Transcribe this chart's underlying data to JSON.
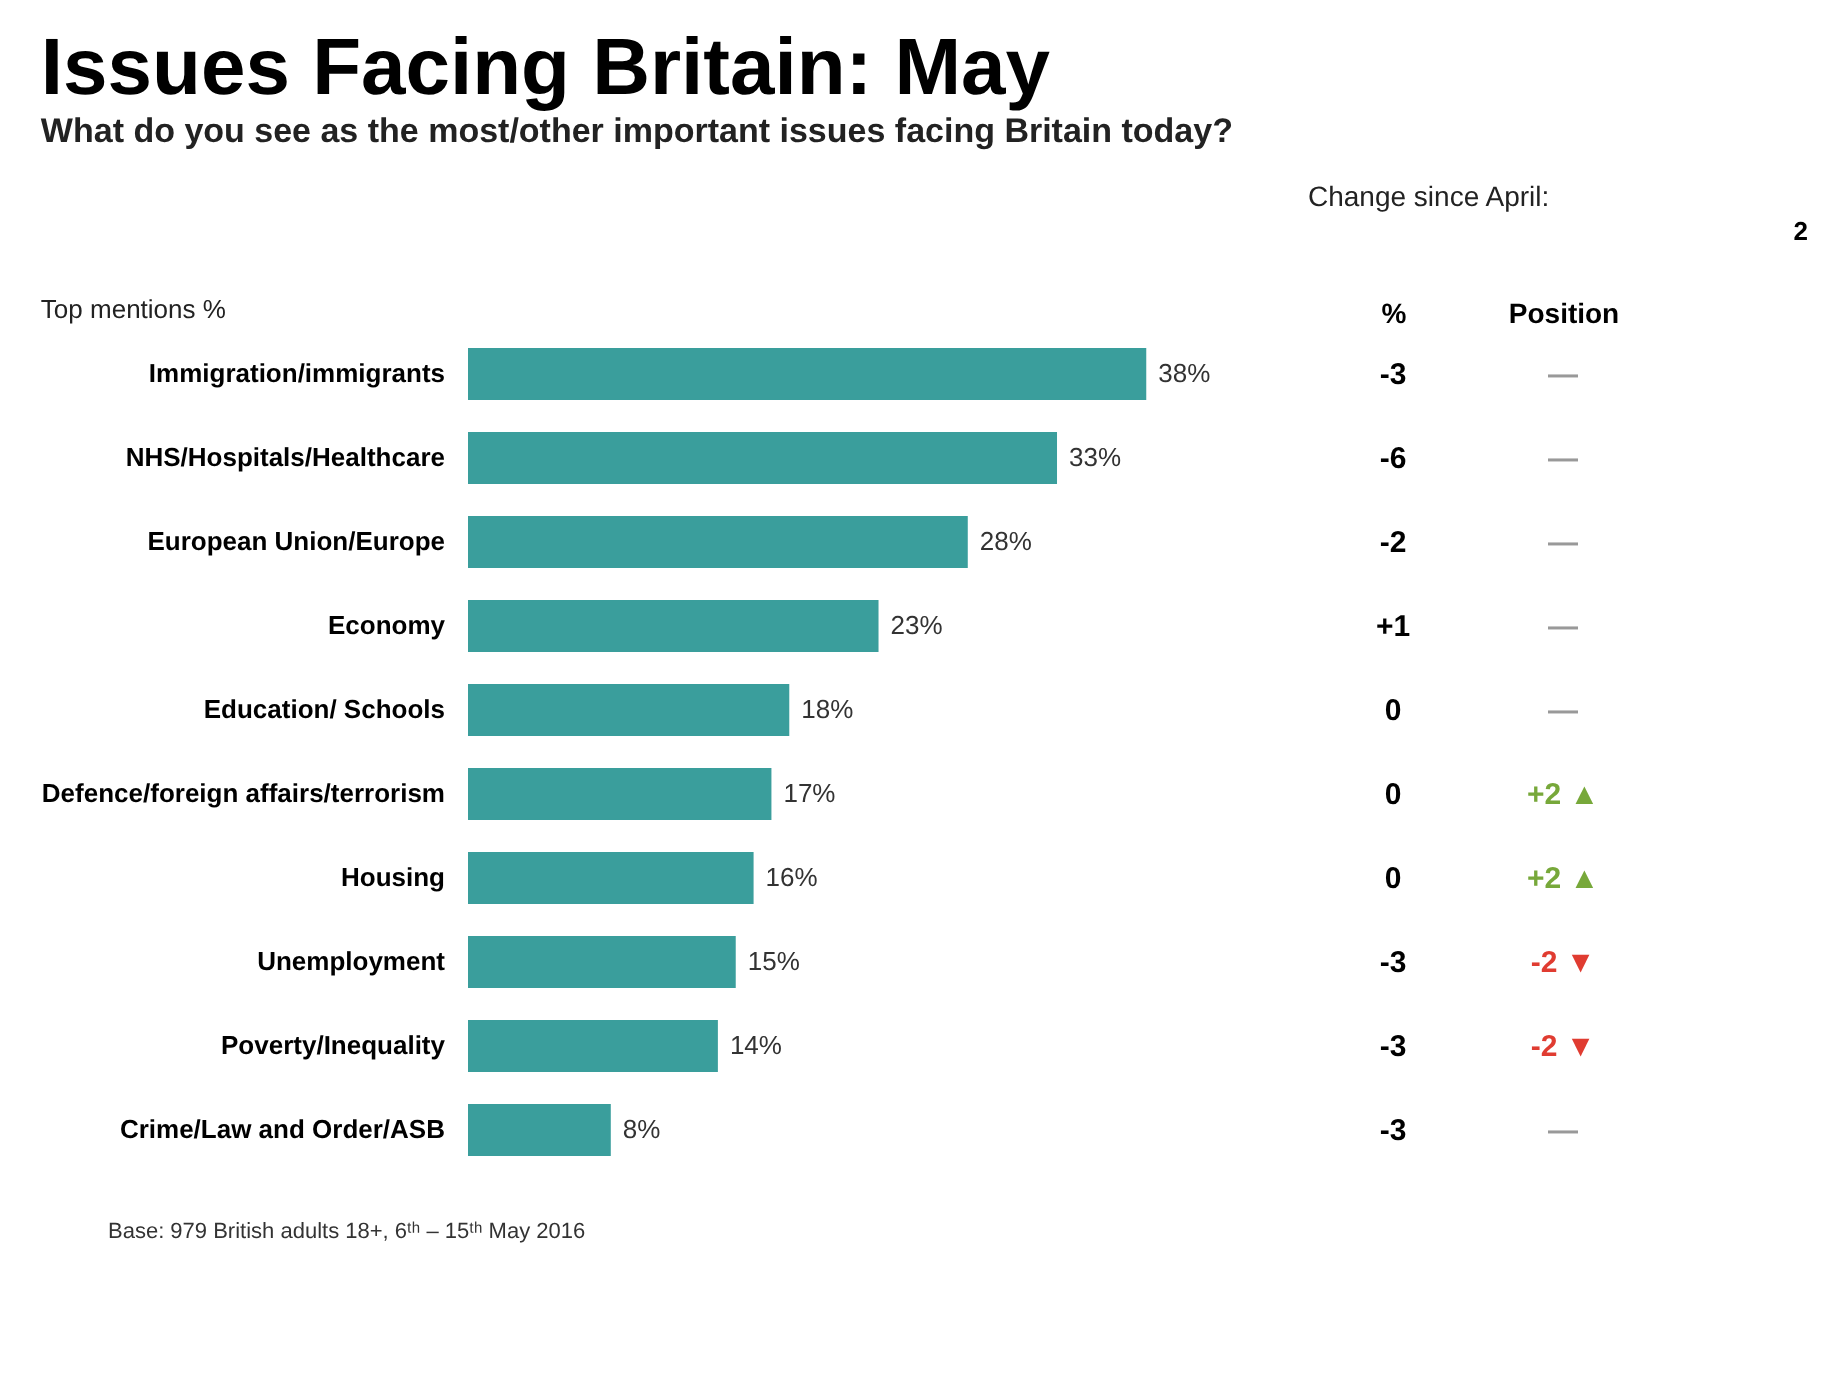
{
  "chart_data": [
    {
      "type": "bar",
      "orientation": "horizontal",
      "title": "Issues Facing Britain: May",
      "subtitle": "What do you see as the most/other important issues facing Britain today?",
      "categories": [
        "Immigration/immigrants",
        "NHS/Hospitals/Healthcare",
        "European Union/Europe",
        "Economy",
        "Education/ Schools",
        "Defence/foreign affairs/terrorism",
        "Housing",
        "Unemployment",
        "Poverty/Inequality",
        "Crime/Law and Order/ASB"
      ],
      "values": [
        38,
        33,
        28,
        23,
        18,
        17,
        16,
        15,
        14,
        8
      ],
      "value_labels": [
        "38%",
        "33%",
        "28%",
        "23%",
        "18%",
        "17%",
        "16%",
        "15%",
        "14%",
        "8%"
      ],
      "color": "#3a9e9c",
      "grid": false,
      "annotations": [
        "Top mentions %",
        "Base: 979  British adults 18+, 6ᵗʰ – 15ᵗʰ May 2016",
        "2"
      ]
    },
    {
      "type": "other",
      "title": "Change since April:",
      "annotations": [
        "%",
        "Position",
        "-3",
        "—",
        "-6",
        "—",
        "-2",
        "—",
        "+1",
        "—",
        "0",
        "—",
        "0",
        "+2 ▲",
        "0",
        "+2 ▲",
        "-3",
        "-2 ▼",
        "-3",
        "-2 ▼",
        "-3",
        "—"
      ],
      "colors": [
        "#000000",
        "#000000",
        "#000000",
        "#999999",
        "#000000",
        "#999999",
        "#000000",
        "#999999",
        "#000000",
        "#999999",
        "#000000",
        "#999999",
        "#000000",
        "#77a83a",
        "#000000",
        "#77a83a",
        "#000000",
        "#e03c31",
        "#000000",
        "#e03c31",
        "#000000",
        "#999999"
      ]
    }
  ]
}
